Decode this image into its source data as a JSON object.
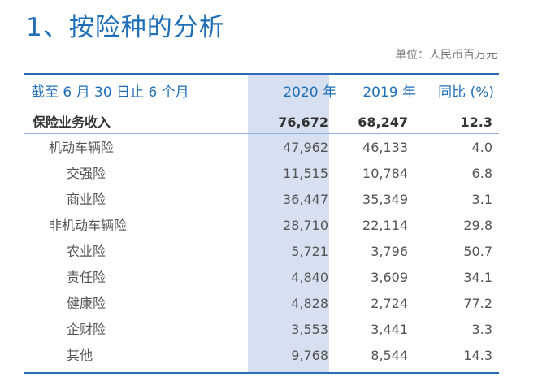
{
  "title": "1、按险种的分析",
  "unit": "单位：人民币百万元",
  "header": {
    "label": "截至 6 月 30 日止 6 个月",
    "col1": "2020 年",
    "col2": "2019 年",
    "col3": "同比 (%)"
  },
  "rows": [
    {
      "label": "保险业务收入",
      "v2020": "76,672",
      "v2019": "68,247",
      "yoy": "12.3"
    },
    {
      "label": "机动车辆险",
      "v2020": "47,962",
      "v2019": "46,133",
      "yoy": "4.0"
    },
    {
      "label": "交强险",
      "v2020": "11,515",
      "v2019": "10,784",
      "yoy": "6.8"
    },
    {
      "label": "商业险",
      "v2020": "36,447",
      "v2019": "35,349",
      "yoy": "3.1"
    },
    {
      "label": "非机动车辆险",
      "v2020": "28,710",
      "v2019": "22,114",
      "yoy": "29.8"
    },
    {
      "label": "农业险",
      "v2020": "5,721",
      "v2019": "3,796",
      "yoy": "50.7"
    },
    {
      "label": "责任险",
      "v2020": "4,840",
      "v2019": "3,609",
      "yoy": "34.1"
    },
    {
      "label": "健康险",
      "v2020": "4,828",
      "v2019": "2,724",
      "yoy": "77.2"
    },
    {
      "label": "企财险",
      "v2020": "3,553",
      "v2019": "3,441",
      "yoy": "3.3"
    },
    {
      "label": "其他",
      "v2020": "9,768",
      "v2019": "8,544",
      "yoy": "14.3"
    }
  ],
  "colors": {
    "accent": "#1f6fb8",
    "column_highlight": "#d7e0f0"
  }
}
